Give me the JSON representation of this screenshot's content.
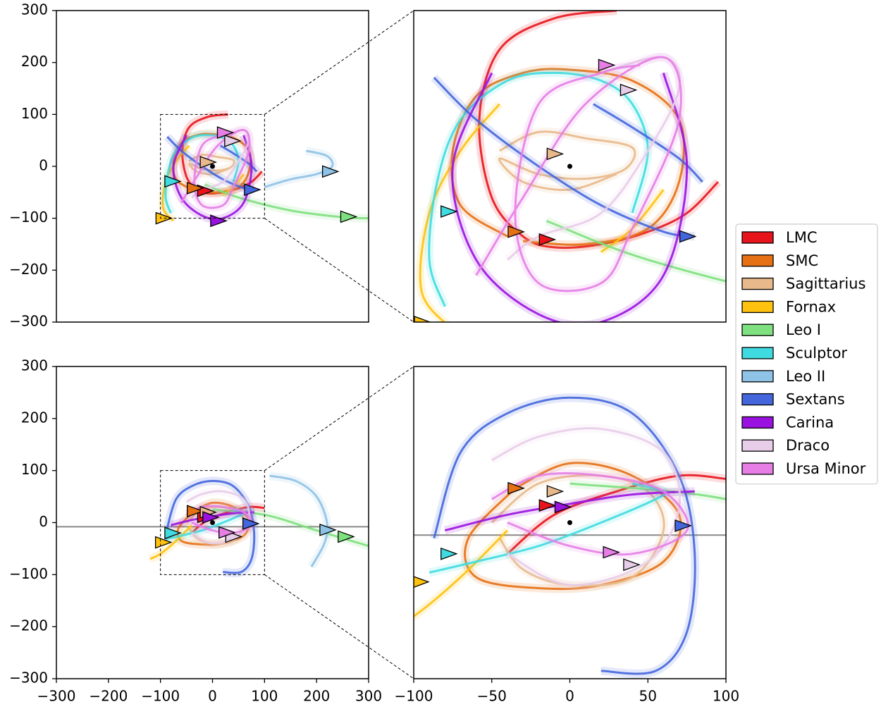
{
  "chart_data": [
    {
      "type": "line",
      "xlim": [
        -300,
        300
      ],
      "ylim": [
        -300,
        300
      ],
      "yticks": [
        {
          "value": -300,
          "label": "−300"
        },
        {
          "value": -200,
          "label": "−200"
        },
        {
          "value": -100,
          "label": "−100"
        },
        0,
        100,
        200,
        300
      ],
      "center": [
        0,
        0
      ],
      "legend": "right",
      "zoom": {
        "xlim": [
          -100,
          100
        ],
        "ylim": [
          -100,
          100
        ]
      },
      "series": [
        {
          "name": "LMC",
          "color": "#e8141c",
          "x": [
            30,
            -10,
            -45,
            -58,
            -50,
            -30,
            -10,
            20,
            50,
            75,
            95
          ],
          "y": [
            100,
            95,
            75,
            30,
            -20,
            -45,
            -52,
            -50,
            -42,
            -30,
            -10
          ],
          "pos": [
            -15,
            -47
          ]
        },
        {
          "name": "SMC",
          "color": "#e67014",
          "x": [
            -40,
            -70,
            -75,
            -60,
            -30,
            0,
            40,
            70,
            70,
            50,
            10,
            -30
          ],
          "y": [
            -45,
            -25,
            10,
            45,
            60,
            62,
            55,
            30,
            -10,
            -40,
            -50,
            -48
          ],
          "pos": [
            -35,
            -42
          ]
        },
        {
          "name": "Sagittarius",
          "color": "#e8b98a",
          "x": [
            -45,
            -20,
            10,
            40,
            35,
            10,
            -20,
            -45,
            -30,
            0,
            30
          ],
          "y": [
            10,
            22,
            18,
            12,
            -2,
            -8,
            -5,
            5,
            -10,
            -15,
            -5
          ],
          "pos": [
            -10,
            8
          ]
        },
        {
          "name": "Fornax",
          "color": "#ffc20e",
          "x": [
            -75,
            -95,
            -90,
            -70,
            -45,
            null,
            20,
            40,
            60
          ],
          "y": [
            -105,
            -80,
            -30,
            10,
            40,
            null,
            -55,
            -40,
            -15
          ],
          "pos": [
            -95,
            -100
          ]
        },
        {
          "name": "Leo I",
          "color": "#7ee07e",
          "x": [
            -15,
            50,
            150,
            250,
            300
          ],
          "y": [
            -35,
            -60,
            -85,
            -98,
            -100
          ],
          "pos": [
            260,
            -97
          ]
        },
        {
          "name": "Sculptor",
          "color": "#3fdbe0",
          "x": [
            -80,
            -90,
            -85,
            -70,
            -40,
            -10,
            20,
            40,
            50,
            40
          ],
          "y": [
            -90,
            -60,
            -10,
            30,
            55,
            60,
            55,
            40,
            10,
            -30
          ],
          "pos": [
            -78,
            -29
          ]
        },
        {
          "name": "Leo II",
          "color": "#8ec2e6",
          "x": [
            100,
            150,
            200,
            230,
            220,
            180
          ],
          "y": [
            -40,
            -25,
            -15,
            0,
            20,
            30
          ],
          "pos": [
            225,
            -10
          ]
        },
        {
          "name": "Sextans",
          "color": "#4466dd",
          "x": [
            -87,
            -60,
            -20,
            20,
            60,
            80,
            null,
            15,
            40,
            70,
            85
          ],
          "y": [
            57,
            30,
            0,
            -25,
            -42,
            -45,
            null,
            40,
            25,
            5,
            -10
          ],
          "pos": [
            75,
            -45
          ]
        },
        {
          "name": "Carina",
          "color": "#9a12e0",
          "x": [
            -50,
            -75,
            -60,
            -20,
            20,
            60,
            75,
            60
          ],
          "y": [
            60,
            0,
            -60,
            -95,
            -100,
            -70,
            0,
            60
          ],
          "pos": [
            10,
            -105
          ]
        },
        {
          "name": "Draco",
          "color": "#e8cde8",
          "x": [
            -40,
            -20,
            20,
            50,
            70,
            60,
            20
          ],
          "y": [
            -60,
            -45,
            -30,
            10,
            50,
            70,
            60
          ],
          "pos": [
            37,
            49
          ]
        },
        {
          "name": "Ursa Minor",
          "color": "#e67ee6",
          "x": [
            -60,
            -30,
            10,
            60,
            70,
            40,
            20,
            -20,
            -35,
            -20,
            20,
            45
          ],
          "y": [
            -70,
            -20,
            40,
            70,
            30,
            -40,
            -75,
            -75,
            -30,
            40,
            60,
            65
          ],
          "pos": [
            23,
            65
          ]
        }
      ]
    },
    {
      "type": "line",
      "xlim": [
        -300,
        300
      ],
      "ylim": [
        -300,
        300
      ],
      "xticks": [
        {
          "value": -300,
          "label": "−300"
        },
        {
          "value": -200,
          "label": "−200"
        },
        {
          "value": -100,
          "label": "−100"
        },
        0,
        100,
        200,
        300
      ],
      "yticks": [
        {
          "value": -300,
          "label": "−300"
        },
        {
          "value": -200,
          "label": "−200"
        },
        {
          "value": -100,
          "label": "−100"
        },
        0,
        100,
        200,
        300
      ],
      "center": [
        0,
        0
      ],
      "hline": -8,
      "zoom": {
        "xlim": [
          -100,
          100
        ],
        "ylim": [
          -100,
          100
        ],
        "xticks": [
          {
            "value": -100,
            "label": "−100"
          },
          {
            "value": -50,
            "label": "−50"
          },
          0,
          50,
          100
        ]
      },
      "series": [
        {
          "name": "LMC",
          "color": "#e8141c",
          "x": [
            -40,
            -10,
            30,
            70,
            100
          ],
          "y": [
            -20,
            5,
            20,
            30,
            28
          ],
          "pos": [
            -15,
            11
          ]
        },
        {
          "name": "SMC",
          "color": "#e67014",
          "x": [
            -35,
            -65,
            -60,
            -20,
            20,
            60,
            70,
            40,
            0,
            -35
          ],
          "y": [
            22,
            -10,
            -35,
            -42,
            -40,
            -25,
            5,
            30,
            38,
            22
          ],
          "pos": [
            -35,
            22
          ]
        },
        {
          "name": "Sagittarius",
          "color": "#e8b98a",
          "x": [
            -50,
            -20,
            20,
            50,
            60,
            40,
            0,
            -30,
            -45
          ],
          "y": [
            0,
            25,
            30,
            20,
            -5,
            -35,
            -40,
            -30,
            -10
          ],
          "pos": [
            -10,
            20
          ]
        },
        {
          "name": "Fornax",
          "color": "#ffc20e",
          "x": [
            -120,
            -100,
            -70,
            -40
          ],
          "y": [
            -70,
            -60,
            -35,
            -5
          ],
          "pos": [
            -96,
            -38
          ]
        },
        {
          "name": "Leo I",
          "color": "#7ee07e",
          "x": [
            0,
            100,
            200,
            300
          ],
          "y": [
            25,
            15,
            -15,
            -45
          ],
          "pos": [
            255,
            -27
          ]
        },
        {
          "name": "Sculptor",
          "color": "#3fdbe0",
          "x": [
            -90,
            -60,
            -20,
            20,
            55,
            60,
            40
          ],
          "y": [
            -32,
            -25,
            -15,
            0,
            15,
            20,
            25
          ],
          "pos": [
            -78,
            -20
          ]
        },
        {
          "name": "Leo II",
          "color": "#8ec2e6",
          "x": [
            110,
            160,
            200,
            220,
            215,
            190
          ],
          "y": [
            90,
            80,
            50,
            0,
            -40,
            -85
          ],
          "pos": [
            220,
            -14
          ]
        },
        {
          "name": "Sextans",
          "color": "#4466dd",
          "x": [
            -87,
            -70,
            -40,
            0,
            40,
            70,
            80,
            75,
            55,
            20
          ],
          "y": [
            -10,
            45,
            70,
            80,
            70,
            30,
            -20,
            -70,
            -95,
            -95
          ],
          "pos": [
            72,
            -2
          ]
        },
        {
          "name": "Carina",
          "color": "#9a12e0",
          "x": [
            -80,
            -40,
            0,
            40,
            80
          ],
          "y": [
            -5,
            5,
            12,
            18,
            20
          ],
          "pos": [
            -5,
            10
          ]
        },
        {
          "name": "Draco",
          "color": "#e8cde8",
          "x": [
            -50,
            -20,
            20,
            60,
            70,
            50,
            0,
            -40
          ],
          "y": [
            40,
            55,
            60,
            45,
            10,
            -25,
            -40,
            -20
          ],
          "pos": [
            39,
            -27
          ]
        },
        {
          "name": "Ursa Minor",
          "color": "#e67ee6",
          "x": [
            -40,
            0,
            40,
            75,
            60,
            20,
            -20,
            -50
          ],
          "y": [
            0,
            -15,
            -20,
            -5,
            20,
            30,
            30,
            15
          ],
          "pos": [
            26,
            -19
          ]
        }
      ]
    }
  ]
}
